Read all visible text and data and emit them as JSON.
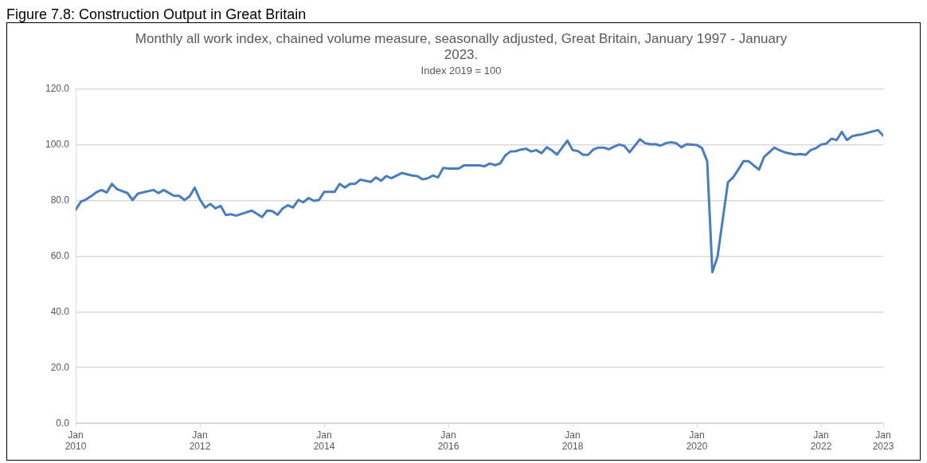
{
  "chart_data": {
    "type": "line",
    "title": "Monthly all work index, chained volume measure, seasonally adjusted, Great Britain, January 1997 - January 2023.",
    "subtitle": "Index 2019 = 100",
    "annotations": [
      "Figure 7.8: Construction Output in Great Britain"
    ],
    "x": [
      "2010-01",
      "2010-02",
      "2010-03",
      "2010-04",
      "2010-05",
      "2010-06",
      "2010-07",
      "2010-08",
      "2010-09",
      "2010-11",
      "2010-12",
      "2011-01",
      "2011-04",
      "2011-05",
      "2011-06",
      "2011-08",
      "2011-09",
      "2011-10",
      "2011-11",
      "2011-12",
      "2012-01",
      "2012-02",
      "2012-03",
      "2012-04",
      "2012-05",
      "2012-06",
      "2012-07",
      "2012-08",
      "2012-11",
      "2013-01",
      "2013-02",
      "2013-03",
      "2013-04",
      "2013-05",
      "2013-06",
      "2013-07",
      "2013-08",
      "2013-09",
      "2013-10",
      "2013-11",
      "2013-12",
      "2014-01",
      "2014-03",
      "2014-04",
      "2014-05",
      "2014-06",
      "2014-07",
      "2014-08",
      "2014-10",
      "2014-11",
      "2014-12",
      "2015-01",
      "2015-02",
      "2015-04",
      "2015-06",
      "2015-07",
      "2015-08",
      "2015-09",
      "2015-10",
      "2015-11",
      "2015-12",
      "2016-01",
      "2016-03",
      "2016-04",
      "2016-05",
      "2016-07",
      "2016-08",
      "2016-09",
      "2016-10",
      "2016-11",
      "2016-12",
      "2017-01",
      "2017-02",
      "2017-03",
      "2017-04",
      "2017-05",
      "2017-06",
      "2017-07",
      "2017-08",
      "2017-09",
      "2017-10",
      "2017-12",
      "2018-01",
      "2018-02",
      "2018-03",
      "2018-04",
      "2018-05",
      "2018-06",
      "2018-07",
      "2018-08",
      "2018-09",
      "2018-10",
      "2018-11",
      "2018-12",
      "2019-02",
      "2019-03",
      "2019-04",
      "2019-05",
      "2019-06",
      "2019-07",
      "2019-08",
      "2019-09",
      "2019-10",
      "2019-11",
      "2020-01",
      "2020-02",
      "2020-03",
      "2020-04",
      "2020-05",
      "2020-07",
      "2020-08",
      "2020-09",
      "2020-10",
      "2020-11",
      "2021-01",
      "2021-02",
      "2021-04",
      "2021-05",
      "2021-06",
      "2021-08",
      "2021-09",
      "2021-10",
      "2021-11",
      "2021-12",
      "2022-01",
      "2022-02",
      "2022-03",
      "2022-04",
      "2022-05",
      "2022-06",
      "2022-07",
      "2022-08",
      "2022-09",
      "2022-12",
      "2023-01"
    ],
    "series": [
      {
        "color": "#4a7ebb",
        "values": [
          76.6,
          79.5,
          80.3,
          81.5,
          82.9,
          83.7,
          82.8,
          85.9,
          84.0,
          82.6,
          80.1,
          82.4,
          83.7,
          82.6,
          83.7,
          81.6,
          81.6,
          80.1,
          81.4,
          84.5,
          80.3,
          77.4,
          78.7,
          77.1,
          78.0,
          74.7,
          75.0,
          74.5,
          76.3,
          74.0,
          76.3,
          76.1,
          74.8,
          77.1,
          78.2,
          77.4,
          80.1,
          79.3,
          80.8,
          79.8,
          80.1,
          83.0,
          83.0,
          85.9,
          84.6,
          85.9,
          85.9,
          87.4,
          86.6,
          88.2,
          87.0,
          88.7,
          87.9,
          89.8,
          88.9,
          88.7,
          87.5,
          87.9,
          88.9,
          88.2,
          91.6,
          91.4,
          91.4,
          92.5,
          92.5,
          92.5,
          92.2,
          93.2,
          92.6,
          93.2,
          96.1,
          97.5,
          97.6,
          98.2,
          98.5,
          97.5,
          98.0,
          96.9,
          99.0,
          97.9,
          96.4,
          101.4,
          98.0,
          97.7,
          96.3,
          96.3,
          98.2,
          98.9,
          98.9,
          98.3,
          99.2,
          100.0,
          99.5,
          97.2,
          101.9,
          100.5,
          100.1,
          100.1,
          99.6,
          100.5,
          100.8,
          100.5,
          99.0,
          100.1,
          99.8,
          98.7,
          94.0,
          54.2,
          59.8,
          86.4,
          88.2,
          91.0,
          94.0,
          94.0,
          91.0,
          95.6,
          98.9,
          97.9,
          97.2,
          96.4,
          96.6,
          96.3,
          98.0,
          98.7,
          100.0,
          100.3,
          102.1,
          101.6,
          104.5,
          101.6,
          103.0,
          103.4,
          103.7,
          105.2,
          103.2
        ]
      }
    ],
    "xlim": [
      "2010-01",
      "2023-01"
    ],
    "xticks": [
      {
        "value": "2010-01",
        "label": "Jan 2010"
      },
      {
        "value": "2012-01",
        "label": "Jan 2012"
      },
      {
        "value": "2014-01",
        "label": "Jan 2014"
      },
      {
        "value": "2016-01",
        "label": "Jan 2016"
      },
      {
        "value": "2018-01",
        "label": "Jan 2018"
      },
      {
        "value": "2020-01",
        "label": "Jan 2020"
      },
      {
        "value": "2022-01",
        "label": "Jan 2022"
      },
      {
        "value": "2023-01",
        "label": "Jan 2023"
      }
    ],
    "ylim": [
      0,
      120
    ],
    "yticks": [
      {
        "value": 0,
        "label": "0.0"
      },
      {
        "value": 20,
        "label": "20.0"
      },
      {
        "value": 40,
        "label": "40.0"
      },
      {
        "value": 60,
        "label": "60.0"
      },
      {
        "value": 80,
        "label": "80.0"
      },
      {
        "value": 100,
        "label": "100.0"
      },
      {
        "value": 120,
        "label": "120.0"
      }
    ],
    "grid": "y",
    "legend": false,
    "marker": "none",
    "line_style": "solid"
  }
}
